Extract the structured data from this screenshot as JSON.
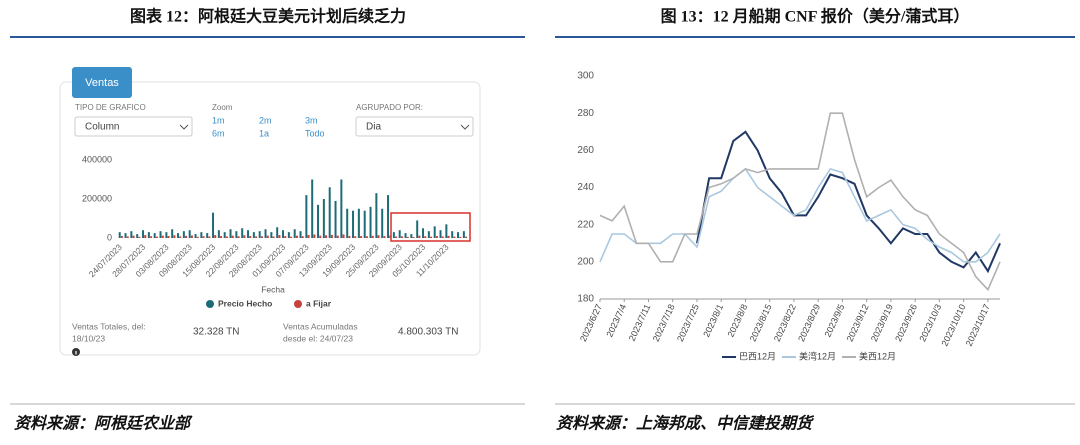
{
  "headings": [
    "图表 12：阿根廷大豆美元计划后续乏力",
    "图 13：12 月船期 CNF 报价（美分/蒲式耳）"
  ],
  "sources": [
    "资料来源：阿根廷农业部",
    "资料来源：上海邦成、中信建投期货"
  ],
  "ui": {
    "tab": "Ventas",
    "chart_type_label": "TIPO DE GRAFICO",
    "chart_type": "Column",
    "zoom_label": "Zoom",
    "zoom_options": [
      "1m",
      "2m",
      "3m",
      "6m",
      "1a",
      "Todo"
    ],
    "group_label": "AGRUPADO POR:",
    "group": "Dia",
    "total_label": [
      "Ventas Totales, del:",
      "18/10/23"
    ],
    "total_value": "32.328 TN",
    "accum_label": [
      "Ventas Acumuladas",
      "desde el: 24/07/23"
    ],
    "accum_value": "4.800.303 TN"
  },
  "chart_data": [
    {
      "type": "bar",
      "x_label": "Fecha",
      "categories": [
        "24/07/2023",
        null,
        null,
        null,
        "28/07/2023",
        null,
        null,
        null,
        "03/08/2023",
        null,
        null,
        null,
        "09/08/2023",
        null,
        null,
        null,
        "15/08/2023",
        null,
        null,
        null,
        "22/08/2023",
        null,
        null,
        null,
        "28/08/2023",
        null,
        null,
        null,
        "01/09/2023",
        null,
        null,
        null,
        "07/09/2023",
        null,
        null,
        null,
        "13/09/2023",
        null,
        null,
        null,
        "19/09/2023",
        null,
        null,
        null,
        "25/09/2023",
        null,
        null,
        null,
        "29/09/2023",
        null,
        null,
        null,
        "05/10/2023",
        null,
        null,
        null,
        "11/10/2023",
        null,
        null,
        null
      ],
      "series": [
        {
          "name": "Precio Hecho",
          "color": "#1e6b78",
          "values": [
            30000,
            25000,
            35000,
            20000,
            40000,
            30000,
            25000,
            35000,
            30000,
            45000,
            25000,
            35000,
            40000,
            20000,
            30000,
            25000,
            130000,
            40000,
            30000,
            45000,
            35000,
            50000,
            40000,
            30000,
            35000,
            45000,
            30000,
            55000,
            40000,
            30000,
            45000,
            35000,
            220000,
            300000,
            170000,
            200000,
            260000,
            190000,
            300000,
            150000,
            140000,
            150000,
            140000,
            160000,
            230000,
            150000,
            220000,
            30000,
            40000,
            25000,
            20000,
            90000,
            50000,
            35000,
            60000,
            40000,
            70000,
            35000,
            30000,
            35000
          ]
        },
        {
          "name": "a Fijar",
          "color": "#c8413b",
          "values": [
            10000,
            8000,
            12000,
            6000,
            15000,
            9000,
            7000,
            12000,
            10000,
            14000,
            8000,
            11000,
            13000,
            6000,
            9000,
            8000,
            15000,
            10000,
            8000,
            12000,
            9000,
            14000,
            10000,
            8000,
            9000,
            12000,
            8000,
            15000,
            10000,
            7000,
            12000,
            9000,
            15000,
            18000,
            12000,
            14000,
            16000,
            12000,
            18000,
            10000,
            9000,
            10000,
            9000,
            11000,
            14000,
            10000,
            13000,
            8000,
            9000,
            6000,
            5000,
            12000,
            9000,
            7000,
            10000,
            8000,
            11000,
            7000,
            6000,
            7000
          ]
        }
      ],
      "ylim": [
        0,
        400000
      ],
      "yticks": [
        0,
        200000,
        400000
      ],
      "grid": false,
      "legend": "bottom"
    },
    {
      "type": "line",
      "categories": [
        "2023/6/27",
        null,
        "2023/7/4",
        null,
        "2023/7/11",
        null,
        "2023/7/18",
        null,
        "2023/7/25",
        null,
        "2023/8/1",
        null,
        "2023/8/8",
        null,
        "2023/8/15",
        null,
        "2023/8/22",
        null,
        "2023/8/29",
        null,
        "2023/9/5",
        null,
        "2023/9/12",
        null,
        "2023/9/19",
        null,
        "2023/9/26",
        null,
        "2023/10/3",
        null,
        "2023/10/10",
        null,
        "2023/10/17",
        null
      ],
      "series": [
        {
          "name": "巴西12月",
          "color": "#1f3864",
          "values": [
            null,
            null,
            null,
            null,
            null,
            null,
            null,
            null,
            210,
            245,
            245,
            265,
            270,
            260,
            245,
            237,
            225,
            225,
            235,
            247,
            245,
            242,
            225,
            218,
            210,
            218,
            215,
            215,
            205,
            200,
            197,
            205,
            195,
            210
          ]
        },
        {
          "name": "美湾12月",
          "color": "#a9c8e0",
          "values": [
            200,
            215,
            215,
            210,
            210,
            210,
            215,
            215,
            208,
            235,
            238,
            245,
            250,
            240,
            235,
            230,
            225,
            228,
            240,
            250,
            248,
            235,
            222,
            225,
            228,
            220,
            218,
            212,
            208,
            205,
            200,
            200,
            205,
            215
          ]
        },
        {
          "name": "美西12月",
          "color": "#b0b0b0",
          "values": [
            225,
            222,
            230,
            210,
            210,
            200,
            200,
            215,
            215,
            240,
            242,
            245,
            250,
            248,
            250,
            250,
            250,
            250,
            250,
            280,
            280,
            255,
            235,
            240,
            244,
            235,
            228,
            225,
            215,
            210,
            205,
            192,
            185,
            200
          ]
        }
      ],
      "ylim": [
        180,
        300
      ],
      "yticks": [
        180,
        200,
        220,
        240,
        260,
        280,
        300
      ],
      "grid": false,
      "legend": "bottom"
    }
  ]
}
